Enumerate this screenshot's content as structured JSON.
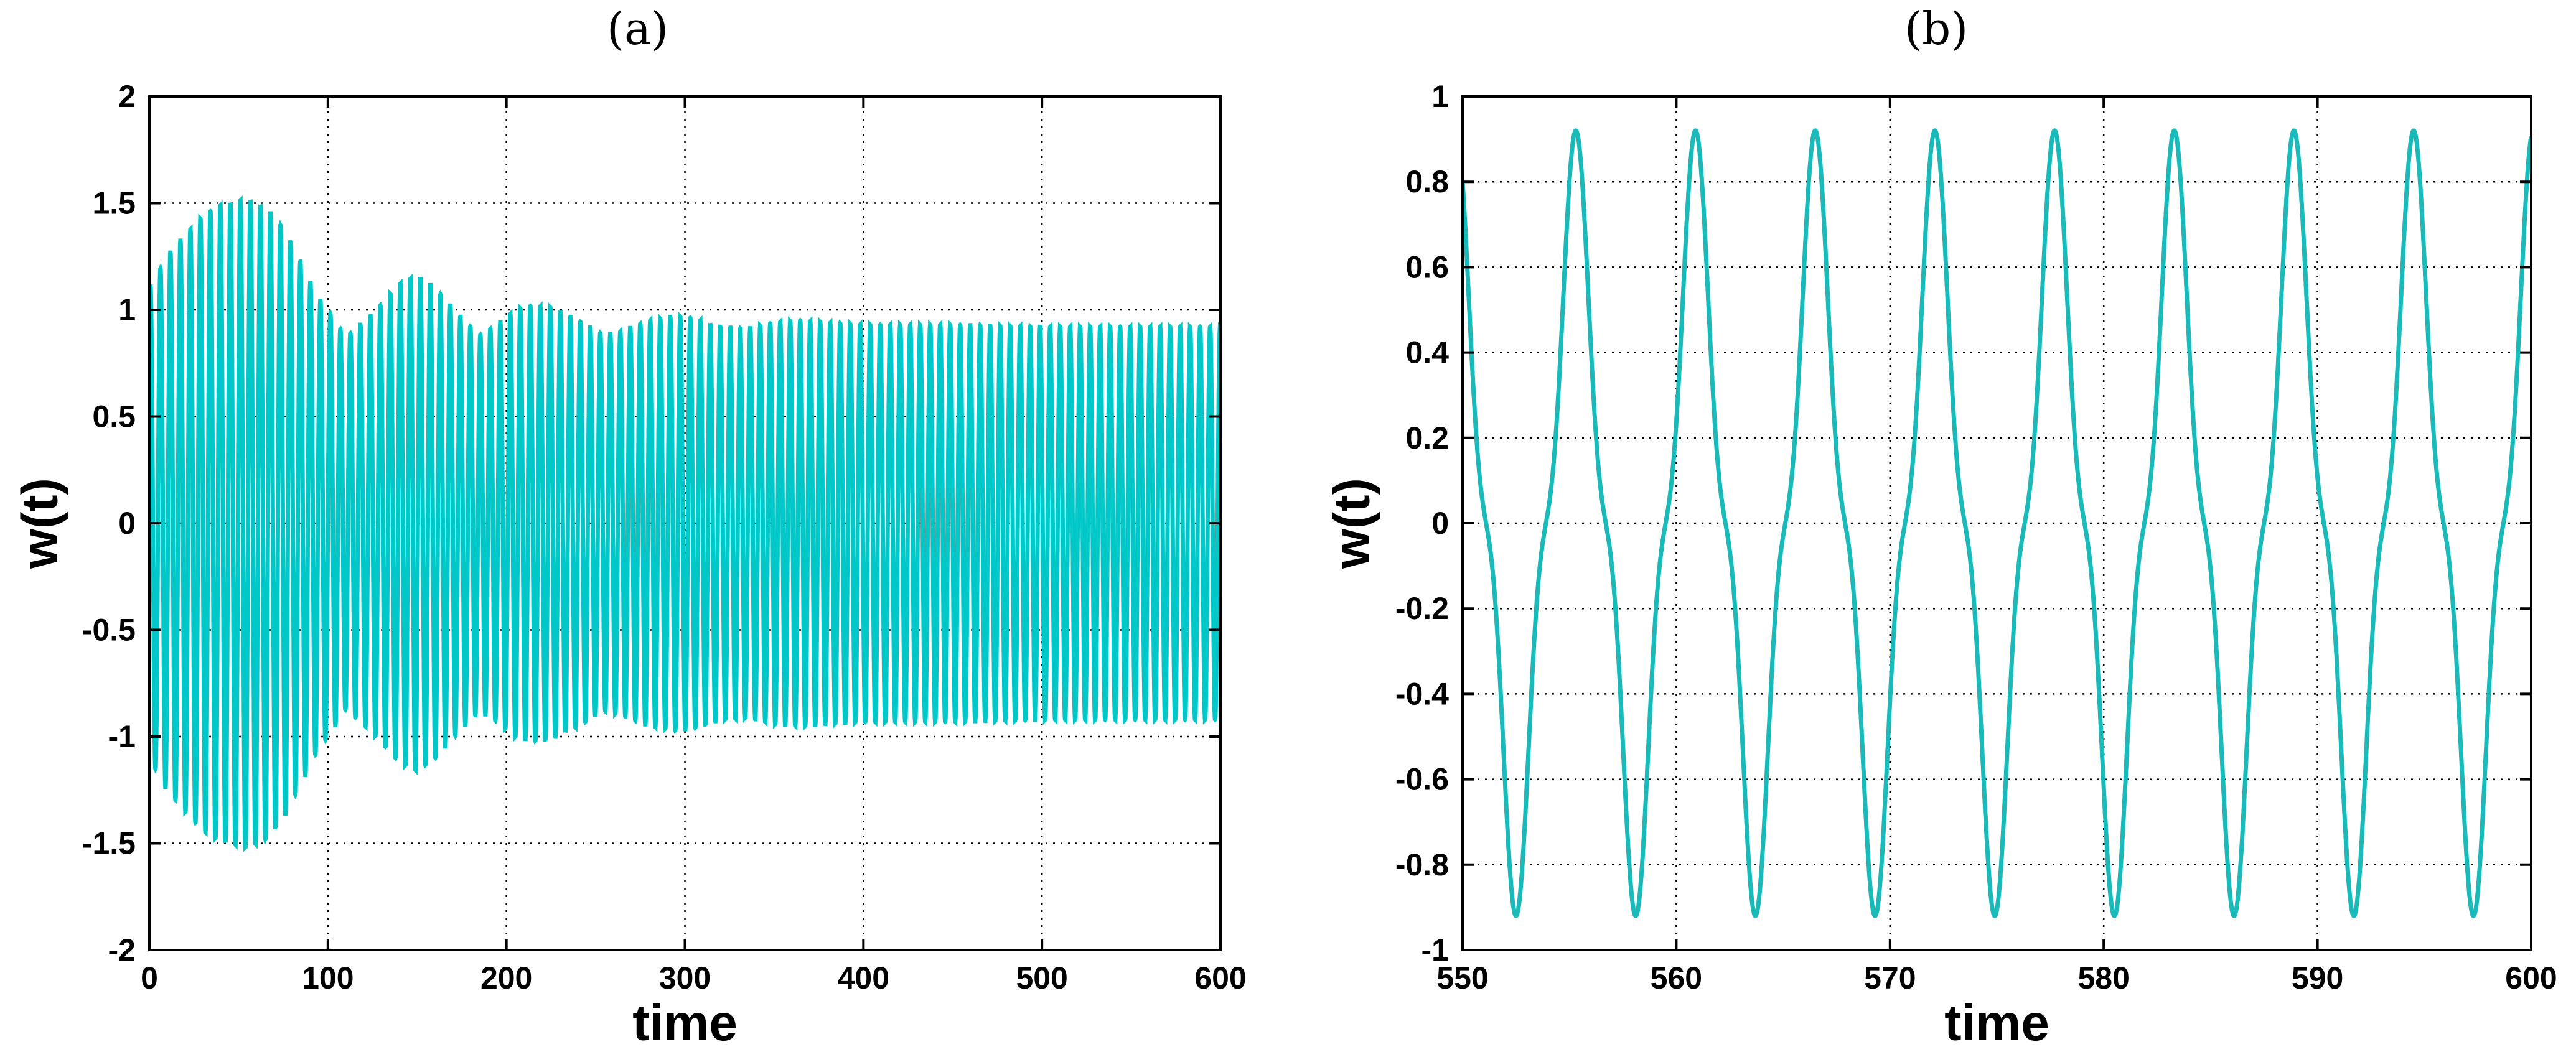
{
  "panels": {
    "a": {
      "label": "(a)"
    },
    "b": {
      "label": "(b)"
    }
  },
  "chart_data": [
    {
      "type": "line",
      "panel": "(a)",
      "xlabel": "time",
      "ylabel": "w(t)",
      "xlim": [
        0,
        600
      ],
      "ylim": [
        -2,
        2
      ],
      "xticks": [
        "0",
        "100",
        "200",
        "300",
        "400",
        "500",
        "600"
      ],
      "yticks": [
        "-2",
        "-1.5",
        "-1",
        "-0.5",
        "0",
        "0.5",
        "1",
        "1.5",
        "2"
      ],
      "grid": true,
      "line_color": "#00c8c8",
      "period": 5.6,
      "series": [
        {
          "envelope_x": [
            0,
            10,
            20,
            30,
            40,
            50,
            55,
            65,
            75,
            85,
            95,
            100,
            110,
            125,
            140,
            150,
            160,
            175,
            185,
            195,
            205,
            215,
            225,
            240,
            255,
            265,
            280,
            295,
            305,
            320,
            335,
            350,
            365,
            380,
            400,
            450,
            500,
            550,
            600
          ],
          "envelope_y": [
            1.1,
            1.25,
            1.35,
            1.44,
            1.49,
            1.51,
            1.52,
            1.48,
            1.38,
            1.22,
            1.05,
            1.0,
            0.87,
            0.98,
            1.12,
            1.16,
            1.1,
            0.96,
            0.88,
            0.93,
            1.0,
            1.02,
            1.01,
            0.95,
            0.88,
            0.9,
            0.95,
            0.97,
            0.96,
            0.92,
            0.91,
            0.94,
            0.95,
            0.94,
            0.93,
            0.93,
            0.92,
            0.92,
            0.92
          ]
        }
      ]
    },
    {
      "type": "line",
      "panel": "(b)",
      "xlabel": "time",
      "ylabel": "w(t)",
      "xlim": [
        550,
        600
      ],
      "ylim": [
        -1,
        1
      ],
      "xticks": [
        "550",
        "560",
        "570",
        "580",
        "590",
        "600"
      ],
      "yticks": [
        "-1",
        "-0.8",
        "-0.6",
        "-0.4",
        "-0.2",
        "0",
        "0.2",
        "0.4",
        "0.6",
        "0.8",
        "1"
      ],
      "grid": true,
      "line_color": "#1ababa",
      "amplitude": 0.92,
      "period": 5.6,
      "peak_times": [
        555.3,
        560.9,
        566.5,
        572.1,
        577.7,
        583.3,
        588.9,
        594.5
      ],
      "trough_times": [
        552.5,
        558.1,
        563.7,
        569.3,
        574.9,
        580.5,
        586.1,
        591.7,
        597.3
      ],
      "value_at_start": 0.83,
      "value_at_end": 0.83
    }
  ]
}
